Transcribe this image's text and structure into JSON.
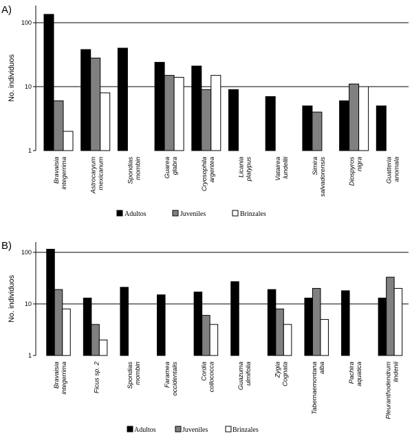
{
  "chart_data": [
    {
      "type": "bar",
      "panel_label": "A)",
      "ylabel": "No. individuos",
      "yscale": "log",
      "ylim": [
        1,
        200
      ],
      "yticks": [
        "1",
        "10",
        "100"
      ],
      "grid": "major horizontal",
      "legend_position": "bottom",
      "categories": [
        [
          "Bravaisia",
          "integerrima"
        ],
        [
          "Astrocaryum",
          "mexicanum"
        ],
        [
          "Spondias",
          "mombin"
        ],
        [
          "Guarea",
          "glabra"
        ],
        [
          "Cryosophila",
          "argentea"
        ],
        [
          "Licania",
          "platypus"
        ],
        [
          "Vatairea",
          "lundellii"
        ],
        [
          "Simira",
          "salvadorensis"
        ],
        [
          "Diospyros",
          "nigra"
        ],
        [
          "Guatteria",
          "anomala"
        ]
      ],
      "series": [
        {
          "name": "Adultos",
          "color": "#000000",
          "values": [
            135,
            38,
            40,
            24,
            21,
            9,
            7,
            5,
            6,
            5
          ]
        },
        {
          "name": "Juveniles",
          "color": "#808080",
          "values": [
            6,
            28,
            null,
            15,
            9,
            null,
            null,
            4,
            11,
            null
          ]
        },
        {
          "name": "Brinzales",
          "color": "#ffffff",
          "values": [
            2,
            8,
            null,
            14,
            15,
            null,
            null,
            null,
            10,
            null
          ]
        }
      ]
    },
    {
      "type": "bar",
      "panel_label": "B)",
      "ylabel": "No. individuos",
      "yscale": "log",
      "ylim": [
        1,
        200
      ],
      "yticks": [
        "1",
        "10",
        "100"
      ],
      "grid": "major horizontal",
      "legend_position": "bottom",
      "categories": [
        [
          "Bravaisia",
          "integerrima"
        ],
        [
          "Ficus sp. 2"
        ],
        [
          "Spondias",
          "mombin"
        ],
        [
          "Faramea",
          "occidentalis"
        ],
        [
          "Cordia",
          "collococca"
        ],
        [
          "Guazuma",
          "ulmifolia"
        ],
        [
          "Zygia",
          "Cognata"
        ],
        [
          "Tabernaemontana",
          "alba"
        ],
        [
          "Pachira",
          "aquatica"
        ],
        [
          "Pleuranthodendrum",
          "lindenii"
        ]
      ],
      "series": [
        {
          "name": "Adultos",
          "color": "#000000",
          "values": [
            115,
            13,
            21,
            15,
            17,
            27,
            19,
            13,
            18,
            13
          ]
        },
        {
          "name": "Juveniles",
          "color": "#808080",
          "values": [
            19,
            4,
            null,
            null,
            6,
            null,
            8,
            20,
            null,
            33
          ]
        },
        {
          "name": "Brinzales",
          "color": "#ffffff",
          "values": [
            8,
            2,
            null,
            null,
            4,
            null,
            4,
            5,
            null,
            20
          ]
        }
      ]
    }
  ]
}
